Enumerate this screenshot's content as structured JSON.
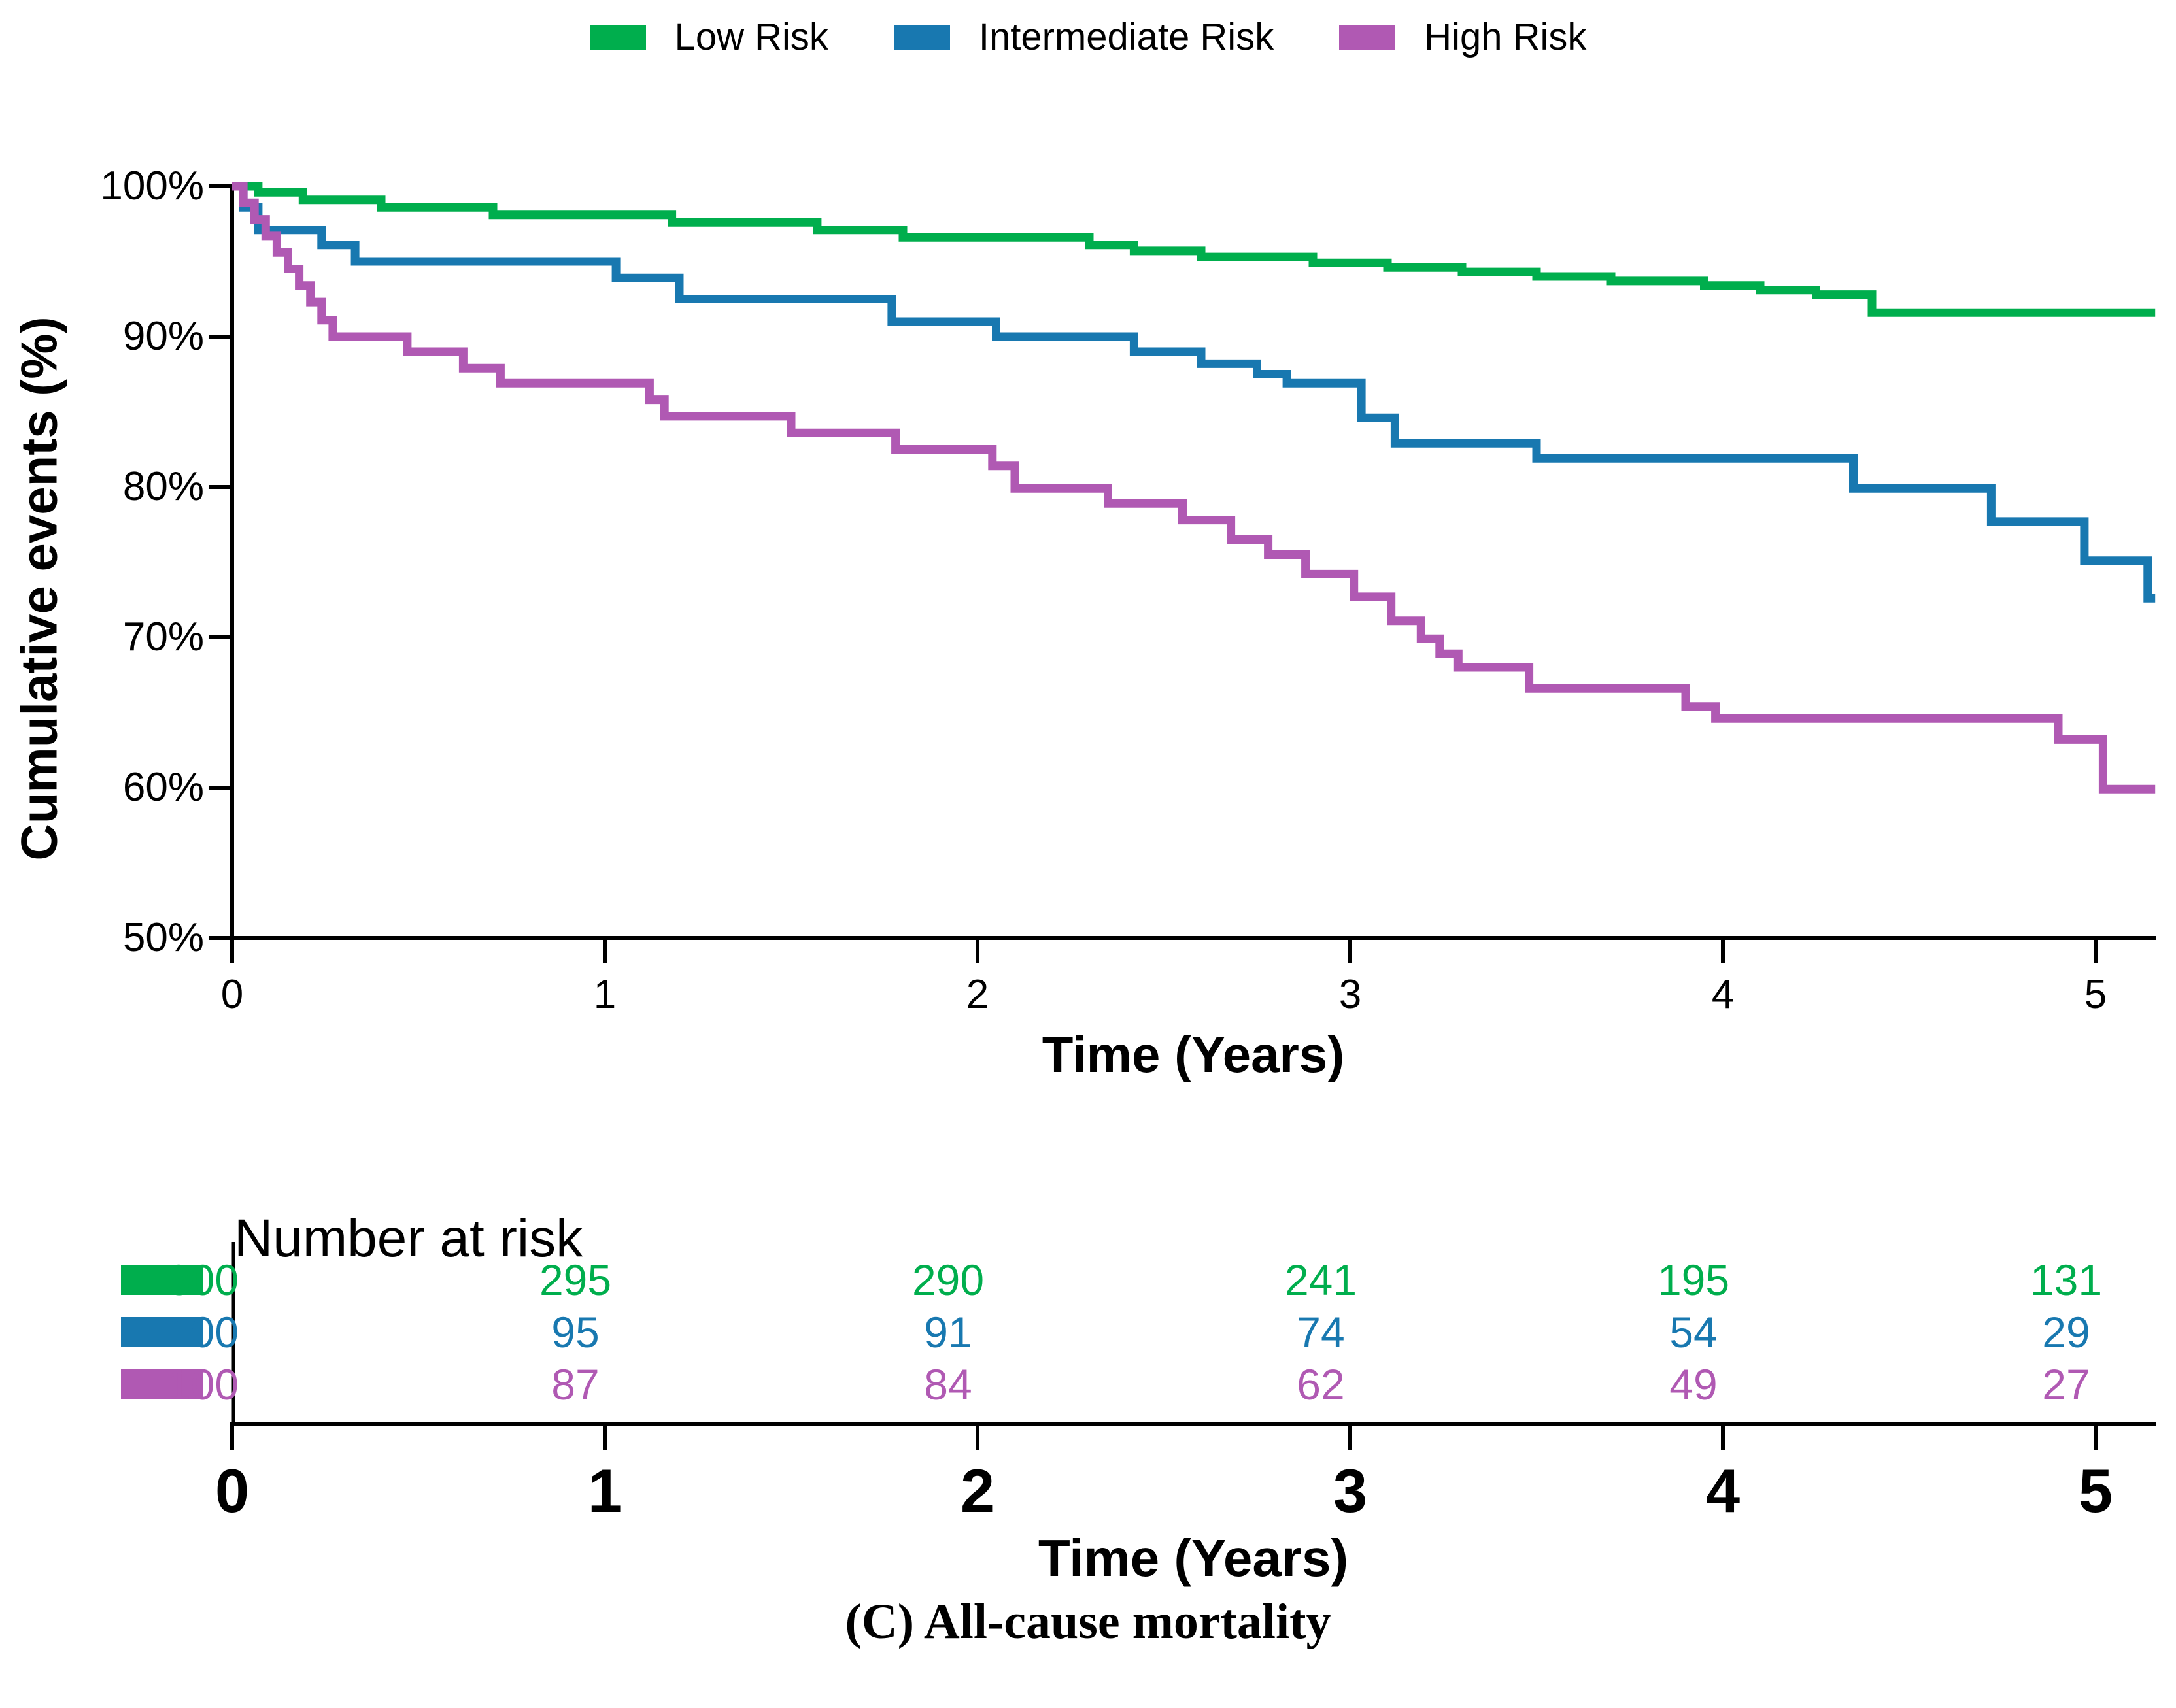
{
  "legend": {
    "items": [
      {
        "label": "Low Risk",
        "color": "#00AE4D"
      },
      {
        "label": "Intermediate Risk",
        "color": "#1878B0"
      },
      {
        "label": "High Risk",
        "color": "#B059B3"
      }
    ]
  },
  "chart_data": {
    "type": "line",
    "subtype": "kaplan-meier-step",
    "title": "",
    "xlabel": "Time (Years)",
    "ylabel": "Cumulative events (%)",
    "xlim": [
      0,
      5.25
    ],
    "ylim": [
      50,
      100
    ],
    "grid": false,
    "legend_position": "top",
    "x_ticks": [
      {
        "value": 0,
        "label": "0"
      },
      {
        "value": 1,
        "label": "1"
      },
      {
        "value": 2,
        "label": "2"
      },
      {
        "value": 3,
        "label": "3"
      },
      {
        "value": 4,
        "label": "4"
      },
      {
        "value": 5,
        "label": "5"
      }
    ],
    "y_ticks": [
      {
        "value": 100,
        "label": "100%"
      },
      {
        "value": 90,
        "label": "90%"
      },
      {
        "value": 80,
        "label": "80%"
      },
      {
        "value": 70,
        "label": "70%"
      },
      {
        "value": 60,
        "label": "60%"
      },
      {
        "value": 50,
        "label": "50%"
      }
    ],
    "series": [
      {
        "name": "Low Risk",
        "color": "#00AE4D",
        "end_time": 5.16,
        "points": [
          [
            0,
            100
          ],
          [
            0.07,
            99.6
          ],
          [
            0.19,
            99.1
          ],
          [
            0.4,
            98.6
          ],
          [
            0.7,
            98.1
          ],
          [
            1.18,
            97.6
          ],
          [
            1.57,
            97.1
          ],
          [
            1.8,
            96.6
          ],
          [
            2.3,
            96.1
          ],
          [
            2.42,
            95.7
          ],
          [
            2.6,
            95.3
          ],
          [
            2.9,
            94.9
          ],
          [
            3.1,
            94.6
          ],
          [
            3.3,
            94.3
          ],
          [
            3.5,
            94.0
          ],
          [
            3.7,
            93.7
          ],
          [
            3.95,
            93.4
          ],
          [
            4.1,
            93.1
          ],
          [
            4.25,
            92.8
          ],
          [
            4.4,
            91.6
          ]
        ]
      },
      {
        "name": "Intermediate Risk",
        "color": "#1878B0",
        "end_time": 5.16,
        "points": [
          [
            0,
            100
          ],
          [
            0.03,
            98.6
          ],
          [
            0.07,
            97.1
          ],
          [
            0.24,
            96.1
          ],
          [
            0.33,
            95.0
          ],
          [
            1.03,
            93.9
          ],
          [
            1.2,
            92.5
          ],
          [
            1.77,
            91.0
          ],
          [
            2.05,
            90.0
          ],
          [
            2.42,
            89.0
          ],
          [
            2.6,
            88.2
          ],
          [
            2.75,
            87.5
          ],
          [
            2.83,
            86.9
          ],
          [
            3.03,
            84.6
          ],
          [
            3.12,
            82.9
          ],
          [
            3.5,
            81.9
          ],
          [
            4.35,
            79.9
          ],
          [
            4.72,
            77.7
          ],
          [
            4.97,
            75.1
          ],
          [
            5.14,
            72.6
          ]
        ]
      },
      {
        "name": "High Risk",
        "color": "#B059B3",
        "end_time": 5.16,
        "points": [
          [
            0,
            100
          ],
          [
            0.03,
            98.9
          ],
          [
            0.06,
            97.8
          ],
          [
            0.09,
            96.7
          ],
          [
            0.12,
            95.6
          ],
          [
            0.15,
            94.5
          ],
          [
            0.18,
            93.4
          ],
          [
            0.21,
            92.3
          ],
          [
            0.24,
            91.1
          ],
          [
            0.27,
            90.0
          ],
          [
            0.47,
            89.0
          ],
          [
            0.62,
            87.9
          ],
          [
            0.72,
            86.9
          ],
          [
            1.12,
            85.8
          ],
          [
            1.16,
            84.7
          ],
          [
            1.5,
            83.6
          ],
          [
            1.78,
            82.5
          ],
          [
            2.04,
            81.4
          ],
          [
            2.1,
            79.9
          ],
          [
            2.35,
            78.9
          ],
          [
            2.55,
            77.8
          ],
          [
            2.68,
            76.5
          ],
          [
            2.78,
            75.5
          ],
          [
            2.88,
            74.2
          ],
          [
            3.01,
            72.7
          ],
          [
            3.11,
            71.1
          ],
          [
            3.19,
            69.9
          ],
          [
            3.24,
            68.9
          ],
          [
            3.29,
            68.0
          ],
          [
            3.48,
            66.6
          ],
          [
            3.9,
            65.4
          ],
          [
            3.98,
            64.6
          ],
          [
            4.9,
            63.2
          ],
          [
            5.02,
            59.9
          ]
        ]
      }
    ]
  },
  "at_risk": {
    "title": "Number at risk",
    "xlabel": "Time (Years)",
    "times": [
      "0",
      "1",
      "2",
      "3",
      "4",
      "5"
    ],
    "rows": [
      {
        "name": "Low Risk",
        "color": "#00AE4D",
        "counts": [
          "300",
          "295",
          "290",
          "241",
          "195",
          "131"
        ]
      },
      {
        "name": "Intermediate Risk",
        "color": "#1878B0",
        "counts": [
          "100",
          "95",
          "91",
          "74",
          "54",
          "29"
        ]
      },
      {
        "name": "High Risk",
        "color": "#B059B3",
        "counts": [
          "100",
          "87",
          "84",
          "62",
          "49",
          "27"
        ]
      }
    ]
  },
  "caption": "(C) All-cause mortality"
}
